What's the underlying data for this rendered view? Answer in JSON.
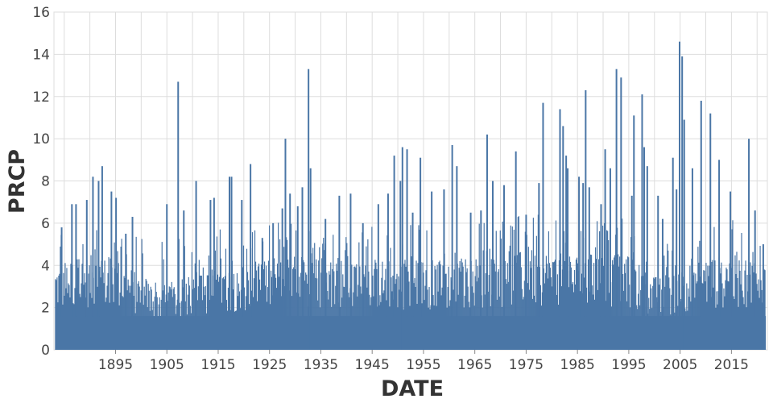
{
  "chart_data": {
    "type": "bar",
    "title": "",
    "xlabel": "DATE",
    "ylabel": "PRCP",
    "x_range": [
      1883,
      2022
    ],
    "ylim": [
      0,
      16
    ],
    "y_ticks": [
      0,
      2,
      4,
      6,
      8,
      10,
      12,
      14,
      16
    ],
    "x_tick_labels": [
      "1895",
      "1905",
      "1915",
      "1925",
      "1935",
      "1945",
      "1955",
      "1965",
      "1975",
      "1985",
      "1995",
      "2005",
      "2015"
    ],
    "grid": true,
    "legend": "none",
    "color": "#4a76a6",
    "spikes": [
      {
        "year": 1884.5,
        "value": 5.8
      },
      {
        "year": 1886.5,
        "value": 6.9
      },
      {
        "year": 1887.3,
        "value": 6.9
      },
      {
        "year": 1889.4,
        "value": 7.1
      },
      {
        "year": 1890.6,
        "value": 8.2
      },
      {
        "year": 1891.7,
        "value": 8.0
      },
      {
        "year": 1892.4,
        "value": 8.7
      },
      {
        "year": 1894.2,
        "value": 7.5
      },
      {
        "year": 1895.1,
        "value": 7.2
      },
      {
        "year": 1897.0,
        "value": 5.5
      },
      {
        "year": 1898.3,
        "value": 6.3
      },
      {
        "year": 1905.0,
        "value": 6.9
      },
      {
        "year": 1907.2,
        "value": 12.7
      },
      {
        "year": 1908.3,
        "value": 6.6
      },
      {
        "year": 1910.7,
        "value": 8.0
      },
      {
        "year": 1913.5,
        "value": 7.1
      },
      {
        "year": 1914.2,
        "value": 7.2
      },
      {
        "year": 1917.2,
        "value": 8.2
      },
      {
        "year": 1917.6,
        "value": 8.2
      },
      {
        "year": 1919.6,
        "value": 7.1
      },
      {
        "year": 1921.3,
        "value": 8.8
      },
      {
        "year": 1923.6,
        "value": 5.3
      },
      {
        "year": 1925.7,
        "value": 6.0
      },
      {
        "year": 1927.5,
        "value": 6.7
      },
      {
        "year": 1928.1,
        "value": 10.0
      },
      {
        "year": 1929.0,
        "value": 7.4
      },
      {
        "year": 1930.5,
        "value": 6.8
      },
      {
        "year": 1931.4,
        "value": 7.7
      },
      {
        "year": 1932.6,
        "value": 13.3
      },
      {
        "year": 1933.0,
        "value": 8.6
      },
      {
        "year": 1935.9,
        "value": 6.2
      },
      {
        "year": 1938.6,
        "value": 7.3
      },
      {
        "year": 1940.8,
        "value": 7.4
      },
      {
        "year": 1943.2,
        "value": 6.0
      },
      {
        "year": 1946.2,
        "value": 6.9
      },
      {
        "year": 1948.1,
        "value": 7.4
      },
      {
        "year": 1949.3,
        "value": 9.2
      },
      {
        "year": 1950.5,
        "value": 8.0
      },
      {
        "year": 1950.9,
        "value": 9.6
      },
      {
        "year": 1951.8,
        "value": 9.5
      },
      {
        "year": 1952.9,
        "value": 6.5
      },
      {
        "year": 1954.4,
        "value": 9.1
      },
      {
        "year": 1956.6,
        "value": 7.5
      },
      {
        "year": 1959.0,
        "value": 7.6
      },
      {
        "year": 1960.6,
        "value": 9.7
      },
      {
        "year": 1961.5,
        "value": 8.7
      },
      {
        "year": 1964.2,
        "value": 6.5
      },
      {
        "year": 1966.2,
        "value": 6.6
      },
      {
        "year": 1967.4,
        "value": 10.2
      },
      {
        "year": 1968.5,
        "value": 8.0
      },
      {
        "year": 1970.7,
        "value": 7.8
      },
      {
        "year": 1973.0,
        "value": 9.4
      },
      {
        "year": 1975.0,
        "value": 6.4
      },
      {
        "year": 1977.5,
        "value": 7.9
      },
      {
        "year": 1978.3,
        "value": 11.7
      },
      {
        "year": 1981.6,
        "value": 11.4
      },
      {
        "year": 1982.2,
        "value": 10.6
      },
      {
        "year": 1982.8,
        "value": 9.2
      },
      {
        "year": 1983.1,
        "value": 8.6
      },
      {
        "year": 1985.3,
        "value": 8.2
      },
      {
        "year": 1986.1,
        "value": 7.9
      },
      {
        "year": 1986.6,
        "value": 12.3
      },
      {
        "year": 1987.3,
        "value": 7.7
      },
      {
        "year": 1989.6,
        "value": 6.9
      },
      {
        "year": 1990.4,
        "value": 9.5
      },
      {
        "year": 1991.4,
        "value": 8.6
      },
      {
        "year": 1992.6,
        "value": 13.3
      },
      {
        "year": 1993.5,
        "value": 12.9
      },
      {
        "year": 1995.6,
        "value": 7.3
      },
      {
        "year": 1996.0,
        "value": 11.1
      },
      {
        "year": 1997.6,
        "value": 12.1
      },
      {
        "year": 1998.0,
        "value": 9.6
      },
      {
        "year": 1998.6,
        "value": 8.7
      },
      {
        "year": 2000.7,
        "value": 7.3
      },
      {
        "year": 2001.6,
        "value": 6.2
      },
      {
        "year": 2003.6,
        "value": 9.1
      },
      {
        "year": 2004.3,
        "value": 7.6
      },
      {
        "year": 2004.9,
        "value": 14.6
      },
      {
        "year": 2005.4,
        "value": 13.9
      },
      {
        "year": 2005.8,
        "value": 10.9
      },
      {
        "year": 2007.4,
        "value": 8.6
      },
      {
        "year": 2009.1,
        "value": 11.8
      },
      {
        "year": 2010.9,
        "value": 11.2
      },
      {
        "year": 2012.6,
        "value": 9.0
      },
      {
        "year": 2014.8,
        "value": 7.5
      },
      {
        "year": 2018.4,
        "value": 10.0
      },
      {
        "year": 2019.6,
        "value": 6.6
      },
      {
        "year": 2021.2,
        "value": 5.0
      }
    ],
    "density": {
      "years": [
        1883,
        1886,
        1890,
        1895,
        1900,
        1903,
        1906,
        1910,
        1915,
        1920,
        1925,
        1930,
        1935,
        1940,
        1945,
        1950,
        1955,
        1960,
        1965,
        1970,
        1975,
        1980,
        1985,
        1990,
        1995,
        2000,
        2002,
        2005,
        2010,
        2015,
        2020,
        2022
      ],
      "values": [
        3.3,
        3.5,
        3.6,
        3.5,
        2.9,
        2.5,
        2.6,
        2.8,
        3.2,
        3.3,
        3.4,
        3.6,
        3.5,
        3.6,
        3.5,
        3.4,
        3.5,
        3.4,
        3.6,
        3.6,
        3.8,
        3.8,
        3.7,
        3.7,
        3.6,
        2.8,
        2.7,
        3.2,
        3.5,
        3.6,
        3.5,
        3.5
      ]
    }
  }
}
